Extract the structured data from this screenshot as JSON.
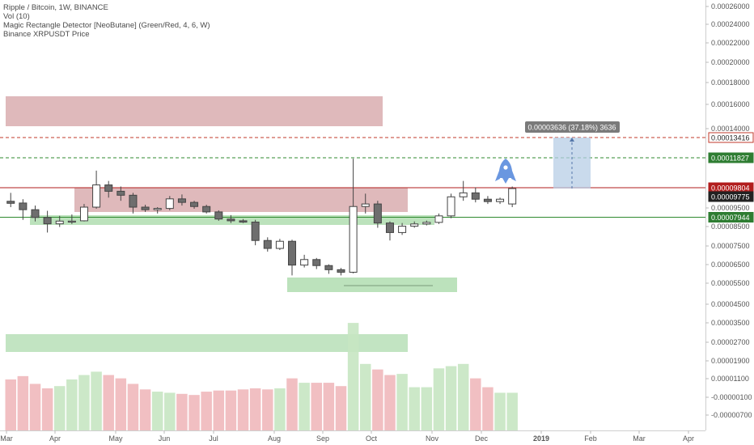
{
  "legend": {
    "line1": "Ripple / Bitcoin, 1W, BINANCE",
    "line2": "Vol (10)",
    "line3": "Magic Rectangle Detector [NeoButane] (Green/Red, 4, 6, W)",
    "line4": "Binance XRPUSDT Price"
  },
  "colors": {
    "bull_candle": "#ffffff",
    "bear_candle": "#6e6e6e",
    "candle_border": "#444444",
    "red_zone": "#c98a8e",
    "green_zone": "#8fce8f",
    "vol_up": "#c7e6c2",
    "vol_down": "#efb8bb",
    "red_line": "#b21d1d",
    "green_line": "#2f8a2f",
    "measure_box": "#b7cde6",
    "rocket": "#6a97e0"
  },
  "chart_data": {
    "type": "candlestick",
    "y_axis_ticks": [
      "0.00026000",
      "0.00024000",
      "0.00022000",
      "0.00020000",
      "0.00018000",
      "0.00016000",
      "0.00014000",
      "0.00009500",
      "0.00008500",
      "0.00007500",
      "0.00006500",
      "0.00005500",
      "0.00004500",
      "0.00003500",
      "0.00002700",
      "0.00001900",
      "0.00001100",
      "-0.00000100",
      "-0.00000700"
    ],
    "x_axis_labels": [
      "Mar",
      "Apr",
      "May",
      "Jun",
      "Jul",
      "Aug",
      "Sep",
      "Oct",
      "Nov",
      "Dec",
      "2019",
      "Feb",
      "Mar",
      "Apr"
    ],
    "price_tags": [
      {
        "value": "0.00013416",
        "style": "red-outline"
      },
      {
        "value": "0.00011827",
        "style": "green"
      },
      {
        "value": "0.00009804",
        "style": "red"
      },
      {
        "value": "0.00009775",
        "style": "dark"
      },
      {
        "value": "0.00007944",
        "style": "green"
      }
    ],
    "measure_label": "0.00003636 (37.18%) 3636",
    "candles": [
      {
        "o": 8.95e-05,
        "h": 9.48e-05,
        "l": 8.58e-05,
        "c": 8.82e-05
      },
      {
        "o": 8.84e-05,
        "h": 9.08e-05,
        "l": 7.78e-05,
        "c": 8.42e-05
      },
      {
        "o": 8.42e-05,
        "h": 8.68e-05,
        "l": 7.68e-05,
        "c": 7.93e-05
      },
      {
        "o": 7.93e-05,
        "h": 8.35e-05,
        "l": 6.98e-05,
        "c": 7.53e-05
      },
      {
        "o": 7.53e-05,
        "h": 8.03e-05,
        "l": 7.33e-05,
        "c": 7.7e-05
      },
      {
        "o": 7.64e-05,
        "h": 8.12e-05,
        "l": 7.52e-05,
        "c": 7.7e-05
      },
      {
        "o": 7.72e-05,
        "h": 8.78e-05,
        "l": 7.68e-05,
        "c": 8.58e-05
      },
      {
        "o": 8.58e-05,
        "h": 0.0001088,
        "l": 8.48e-05,
        "c": 9.98e-05
      },
      {
        "o": 9.98e-05,
        "h": 0.0001023,
        "l": 9.18e-05,
        "c": 9.58e-05
      },
      {
        "o": 9.58e-05,
        "h": 9.88e-05,
        "l": 8.98e-05,
        "c": 9.33e-05
      },
      {
        "o": 9.33e-05,
        "h": 9.48e-05,
        "l": 8.18e-05,
        "c": 8.58e-05
      },
      {
        "o": 8.58e-05,
        "h": 8.73e-05,
        "l": 8.28e-05,
        "c": 8.42e-05
      },
      {
        "o": 8.42e-05,
        "h": 8.58e-05,
        "l": 8.18e-05,
        "c": 8.5e-05
      },
      {
        "o": 8.5e-05,
        "h": 9.28e-05,
        "l": 8.38e-05,
        "c": 9.1e-05
      },
      {
        "o": 9.1e-05,
        "h": 9.38e-05,
        "l": 8.68e-05,
        "c": 8.88e-05
      },
      {
        "o": 8.88e-05,
        "h": 8.98e-05,
        "l": 8.48e-05,
        "c": 8.62e-05
      },
      {
        "o": 8.62e-05,
        "h": 8.73e-05,
        "l": 8.18e-05,
        "c": 8.28e-05
      },
      {
        "o": 8.28e-05,
        "h": 8.38e-05,
        "l": 7.72e-05,
        "c": 7.83e-05
      },
      {
        "o": 7.83e-05,
        "h": 8.08e-05,
        "l": 7.58e-05,
        "c": 7.72e-05
      },
      {
        "o": 7.72e-05,
        "h": 7.83e-05,
        "l": 7.58e-05,
        "c": 7.64e-05
      },
      {
        "o": 7.64e-05,
        "h": 7.78e-05,
        "l": 6.18e-05,
        "c": 6.48e-05
      },
      {
        "o": 6.48e-05,
        "h": 6.68e-05,
        "l": 5.78e-05,
        "c": 5.98e-05
      },
      {
        "o": 5.98e-05,
        "h": 6.58e-05,
        "l": 5.88e-05,
        "c": 6.43e-05
      },
      {
        "o": 6.43e-05,
        "h": 6.53e-05,
        "l": 4.28e-05,
        "c": 4.93e-05
      },
      {
        "o": 4.93e-05,
        "h": 5.58e-05,
        "l": 4.78e-05,
        "c": 5.28e-05
      },
      {
        "o": 5.28e-05,
        "h": 5.38e-05,
        "l": 4.68e-05,
        "c": 4.9e-05
      },
      {
        "o": 4.9e-05,
        "h": 4.98e-05,
        "l": 4.38e-05,
        "c": 4.64e-05
      },
      {
        "o": 4.64e-05,
        "h": 4.75e-05,
        "l": 4.28e-05,
        "c": 4.48e-05
      },
      {
        "o": 4.48e-05,
        "h": 0.0001163,
        "l": 4.41e-05,
        "c": 8.62e-05
      },
      {
        "o": 8.62e-05,
        "h": 9.43e-05,
        "l": 8.18e-05,
        "c": 8.78e-05
      },
      {
        "o": 8.78e-05,
        "h": 8.98e-05,
        "l": 7.28e-05,
        "c": 7.58e-05
      },
      {
        "o": 7.58e-05,
        "h": 7.68e-05,
        "l": 6.48e-05,
        "c": 6.98e-05
      },
      {
        "o": 6.98e-05,
        "h": 7.58e-05,
        "l": 6.83e-05,
        "c": 7.38e-05
      },
      {
        "o": 7.38e-05,
        "h": 7.68e-05,
        "l": 7.28e-05,
        "c": 7.52e-05
      },
      {
        "o": 7.52e-05,
        "h": 7.73e-05,
        "l": 7.43e-05,
        "c": 7.62e-05
      },
      {
        "o": 7.62e-05,
        "h": 8.18e-05,
        "l": 7.52e-05,
        "c": 8.03e-05
      },
      {
        "o": 8.03e-05,
        "h": 9.43e-05,
        "l": 7.88e-05,
        "c": 9.23e-05
      },
      {
        "o": 9.23e-05,
        "h": 0.0001023,
        "l": 8.98e-05,
        "c": 9.48e-05
      },
      {
        "o": 9.48e-05,
        "h": 9.83e-05,
        "l": 8.88e-05,
        "c": 9.08e-05
      },
      {
        "o": 9.08e-05,
        "h": 9.28e-05,
        "l": 8.78e-05,
        "c": 8.93e-05
      },
      {
        "o": 8.93e-05,
        "h": 9.18e-05,
        "l": 8.78e-05,
        "c": 9.08e-05
      },
      {
        "o": 8.78e-05,
        "h": 9.88e-05,
        "l": 8.58e-05,
        "c": 9.75e-05
      }
    ],
    "volumes": [
      {
        "v": 0.46,
        "up": false
      },
      {
        "v": 0.49,
        "up": false
      },
      {
        "v": 0.42,
        "up": false
      },
      {
        "v": 0.38,
        "up": false
      },
      {
        "v": 0.4,
        "up": true
      },
      {
        "v": 0.46,
        "up": true
      },
      {
        "v": 0.5,
        "up": true
      },
      {
        "v": 0.53,
        "up": true
      },
      {
        "v": 0.5,
        "up": false
      },
      {
        "v": 0.47,
        "up": false
      },
      {
        "v": 0.42,
        "up": false
      },
      {
        "v": 0.37,
        "up": false
      },
      {
        "v": 0.35,
        "up": true
      },
      {
        "v": 0.34,
        "up": true
      },
      {
        "v": 0.33,
        "up": false
      },
      {
        "v": 0.32,
        "up": false
      },
      {
        "v": 0.35,
        "up": false
      },
      {
        "v": 0.36,
        "up": false
      },
      {
        "v": 0.36,
        "up": false
      },
      {
        "v": 0.37,
        "up": false
      },
      {
        "v": 0.38,
        "up": false
      },
      {
        "v": 0.37,
        "up": false
      },
      {
        "v": 0.38,
        "up": true
      },
      {
        "v": 0.47,
        "up": false
      },
      {
        "v": 0.43,
        "up": true
      },
      {
        "v": 0.43,
        "up": false
      },
      {
        "v": 0.43,
        "up": false
      },
      {
        "v": 0.4,
        "up": false
      },
      {
        "v": 0.97,
        "up": true
      },
      {
        "v": 0.6,
        "up": true
      },
      {
        "v": 0.55,
        "up": false
      },
      {
        "v": 0.5,
        "up": false
      },
      {
        "v": 0.51,
        "up": true
      },
      {
        "v": 0.39,
        "up": true
      },
      {
        "v": 0.39,
        "up": true
      },
      {
        "v": 0.56,
        "up": true
      },
      {
        "v": 0.58,
        "up": true
      },
      {
        "v": 0.6,
        "up": true
      },
      {
        "v": 0.47,
        "up": false
      },
      {
        "v": 0.39,
        "up": false
      },
      {
        "v": 0.34,
        "up": true
      },
      {
        "v": 0.34,
        "up": true
      }
    ]
  }
}
